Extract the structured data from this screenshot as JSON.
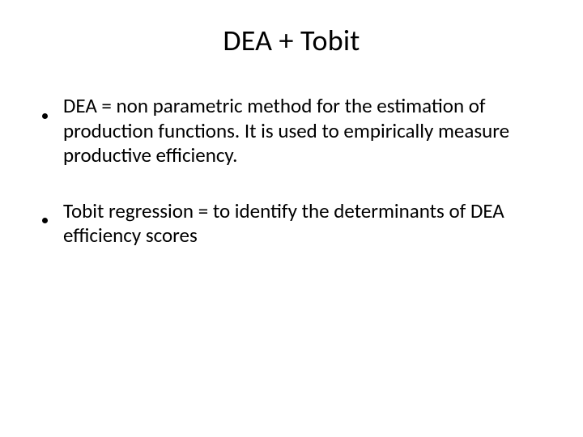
{
  "slide": {
    "title": "DEA + Tobit",
    "bullets": [
      {
        "text": "DEA = non parametric method for the estimation of production functions. It is used to empirically measure productive efficiency."
      },
      {
        "text": "Tobit regression = to identify the determinants of DEA efficiency scores"
      }
    ],
    "style": {
      "background_color": "#ffffff",
      "text_color": "#000000",
      "title_fontsize": 36,
      "body_fontsize": 25,
      "font_family": "Calibri",
      "bullet_marker": "disc",
      "bullet_color": "#000000",
      "slide_width": 720,
      "slide_height": 540
    }
  }
}
